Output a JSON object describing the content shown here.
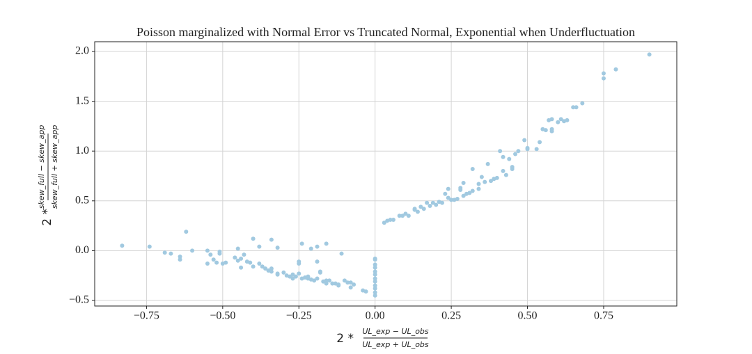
{
  "chart_data": {
    "type": "scatter",
    "title": "Poisson marginalized with Normal Error vs Truncated Normal, Exponential when Underfluctuation",
    "x_label": {
      "prefix": "2 *",
      "numerator": "UL_exp − UL_obs",
      "denominator": "UL_exp + UL_obs"
    },
    "y_label": {
      "prefix": "2 *",
      "numerator": "skew_full − skew_app",
      "denominator": "skew_full + skew_app"
    },
    "color": "#a1c9e0",
    "grid": true,
    "xlim": [
      -0.92,
      0.99
    ],
    "ylim": [
      -0.556,
      2.098
    ],
    "xticks": [
      {
        "value": -0.75,
        "label": "−0.75"
      },
      {
        "value": -0.5,
        "label": "−0.50"
      },
      {
        "value": -0.25,
        "label": "−0.25"
      },
      {
        "value": 0,
        "label": "0.00"
      },
      0.25,
      {
        "value": 0.5,
        "label": "0.50"
      },
      0.75
    ],
    "yticks": [
      {
        "value": -0.5,
        "label": "−0.5"
      },
      {
        "value": 0,
        "label": "0.0"
      },
      0.5,
      {
        "value": 1,
        "label": "1.0"
      },
      1.5,
      {
        "value": 2,
        "label": "2.0"
      }
    ],
    "x": [
      -0.83,
      -0.74,
      -0.69,
      -0.67,
      -0.64,
      -0.64,
      -0.62,
      -0.6,
      -0.55,
      -0.55,
      -0.54,
      -0.53,
      -0.52,
      -0.51,
      -0.51,
      -0.5,
      -0.49,
      -0.46,
      -0.45,
      -0.45,
      -0.44,
      -0.44,
      -0.43,
      -0.42,
      -0.41,
      -0.4,
      -0.4,
      -0.38,
      -0.38,
      -0.37,
      -0.36,
      -0.35,
      -0.34,
      -0.34,
      -0.32,
      -0.32,
      -0.3,
      -0.29,
      -0.28,
      -0.27,
      -0.27,
      -0.26,
      -0.25,
      -0.25,
      -0.25,
      -0.24,
      -0.24,
      -0.23,
      -0.22,
      -0.22,
      -0.21,
      -0.21,
      -0.2,
      -0.19,
      -0.19,
      -0.19,
      -0.18,
      -0.18,
      -0.17,
      -0.16,
      -0.16,
      -0.16,
      -0.15,
      -0.14,
      -0.13,
      -0.12,
      -0.12,
      -0.11,
      -0.1,
      -0.09,
      -0.08,
      -0.08,
      -0.07,
      -0.04,
      -0.03,
      -0.34,
      -0.32,
      0,
      0,
      0,
      0,
      0,
      0,
      0,
      0,
      0,
      0,
      0,
      0,
      0.03,
      0.04,
      0.05,
      0.06,
      0.08,
      0.09,
      0.1,
      0.11,
      0.13,
      0.13,
      0.14,
      0.15,
      0.16,
      0.17,
      0.18,
      0.19,
      0.2,
      0.21,
      0.22,
      0.23,
      0.24,
      0.24,
      0.25,
      0.26,
      0.27,
      0.28,
      0.28,
      0.29,
      0.29,
      0.3,
      0.31,
      0.32,
      0.32,
      0.34,
      0.34,
      0.35,
      0.36,
      0.37,
      0.38,
      0.39,
      0.39,
      0.4,
      0.41,
      0.42,
      0.42,
      0.43,
      0.44,
      0.45,
      0.45,
      0.46,
      0.47,
      0.49,
      0.5,
      0.5,
      0.53,
      0.54,
      0.55,
      0.56,
      0.57,
      0.58,
      0.58,
      0.58,
      0.6,
      0.61,
      0.62,
      0.63,
      0.65,
      0.66,
      0.68,
      0.75,
      0.75,
      0.79,
      0.9
    ],
    "values": [
      0.05,
      0.04,
      -0.02,
      -0.03,
      -0.06,
      -0.09,
      0.19,
      0.0,
      0.0,
      -0.13,
      -0.04,
      -0.09,
      -0.12,
      -0.03,
      -0.01,
      -0.13,
      -0.12,
      -0.07,
      -0.1,
      0.02,
      -0.08,
      -0.17,
      -0.04,
      -0.11,
      -0.12,
      -0.16,
      0.12,
      -0.13,
      0.04,
      -0.16,
      -0.18,
      -0.2,
      -0.18,
      -0.21,
      -0.23,
      -0.24,
      -0.22,
      -0.25,
      -0.26,
      -0.24,
      -0.28,
      -0.26,
      -0.11,
      -0.13,
      -0.23,
      0.07,
      -0.28,
      -0.27,
      -0.26,
      -0.28,
      -0.29,
      0.02,
      -0.3,
      0.04,
      -0.28,
      -0.11,
      -0.21,
      -0.22,
      -0.31,
      -0.3,
      0.07,
      -0.33,
      -0.3,
      -0.33,
      -0.33,
      -0.34,
      -0.35,
      -0.03,
      -0.3,
      -0.32,
      -0.37,
      -0.32,
      -0.34,
      -0.4,
      -0.41,
      0.11,
      0.03,
      -0.08,
      -0.09,
      -0.14,
      -0.17,
      -0.21,
      -0.24,
      -0.28,
      -0.31,
      -0.35,
      -0.38,
      -0.42,
      -0.45,
      0.28,
      0.3,
      0.31,
      0.31,
      0.35,
      0.35,
      0.37,
      0.35,
      0.41,
      0.42,
      0.39,
      0.44,
      0.42,
      0.48,
      0.45,
      0.48,
      0.46,
      0.49,
      0.48,
      0.57,
      0.53,
      0.62,
      0.51,
      0.51,
      0.52,
      0.63,
      0.61,
      0.55,
      0.68,
      0.57,
      0.58,
      0.6,
      0.82,
      0.62,
      0.67,
      0.74,
      0.69,
      0.87,
      0.7,
      0.72,
      0.72,
      0.73,
      1.0,
      0.8,
      0.94,
      0.76,
      0.92,
      0.82,
      0.84,
      0.97,
      1.0,
      1.11,
      1.03,
      1.02,
      1.02,
      1.09,
      1.22,
      1.21,
      1.31,
      1.22,
      1.2,
      1.32,
      1.29,
      1.32,
      1.3,
      1.31,
      1.44,
      1.44,
      1.48,
      1.78,
      1.73,
      1.82,
      1.97
    ]
  }
}
